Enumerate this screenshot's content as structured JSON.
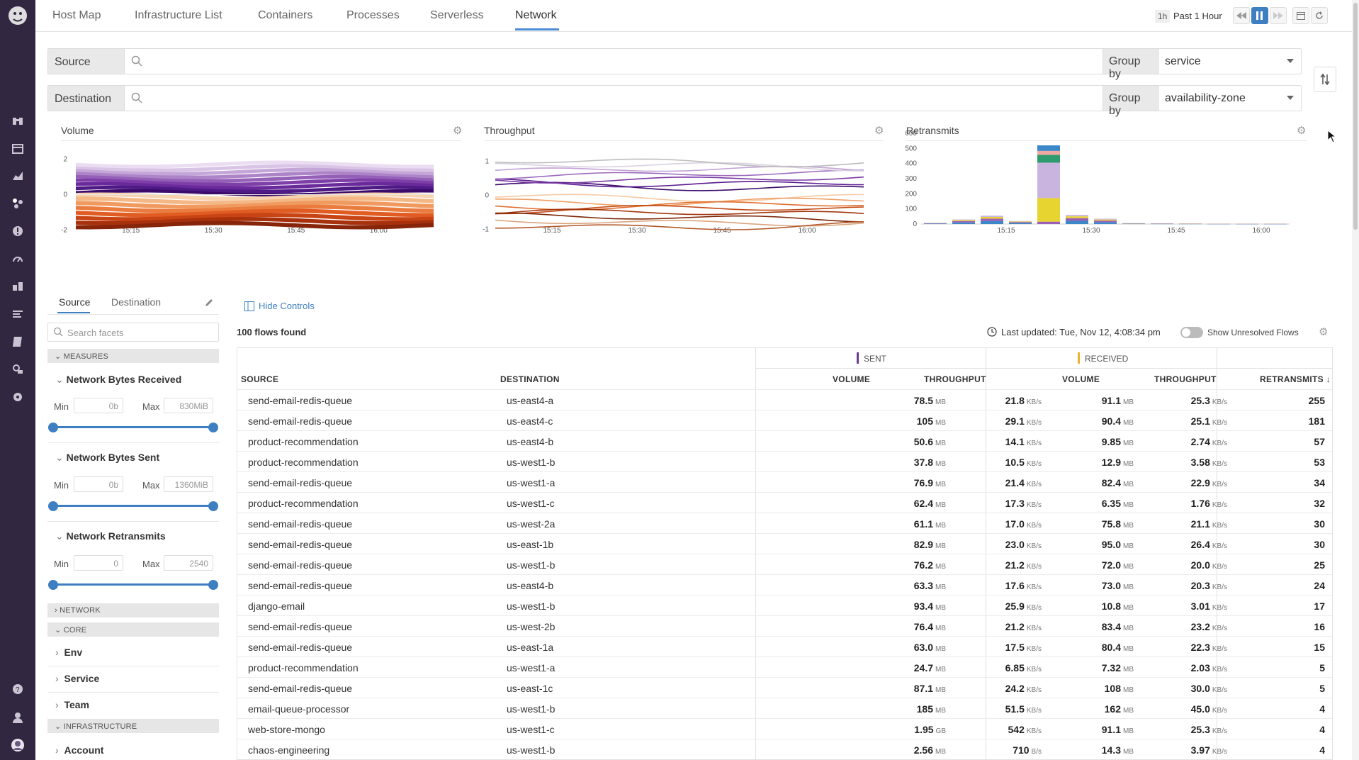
{
  "nav": {
    "tabs": [
      "Host Map",
      "Infrastructure List",
      "Containers",
      "Processes",
      "Serverless",
      "Network"
    ],
    "active": "Network"
  },
  "time": {
    "badge": "1h",
    "label": "Past 1 Hour"
  },
  "filters": {
    "source_label": "Source",
    "destination_label": "Destination",
    "group_by_label": "Group by",
    "source_group": "service",
    "destination_group": "availability-zone"
  },
  "charts": {
    "x_ticks": [
      "15:15",
      "15:30",
      "15:45",
      "16:00"
    ],
    "volume": {
      "title": "Volume",
      "y_ticks": [
        "2",
        "0",
        "-2"
      ]
    },
    "throughput": {
      "title": "Throughput",
      "y_ticks": [
        "1",
        "0",
        "-1"
      ]
    },
    "retransmits": {
      "title": "Retransmits",
      "y_ticks": [
        "600",
        "500",
        "400",
        "300",
        "200",
        "100",
        "0"
      ]
    }
  },
  "chart_data": [
    {
      "type": "area",
      "title": "Volume",
      "x_ticks": [
        "15:15",
        "15:30",
        "15:45",
        "16:00"
      ],
      "y_ticks": [
        2,
        0,
        -2
      ],
      "ylim": [
        -2.5,
        2.5
      ],
      "note_series": "stacked sent (purple, positive) and received (orange/red, negative) flows"
    },
    {
      "type": "line",
      "title": "Throughput",
      "x_ticks": [
        "15:15",
        "15:30",
        "15:45",
        "16:00"
      ],
      "y_ticks": [
        1,
        0,
        -1
      ],
      "ylim": [
        -1.4,
        1.4
      ]
    },
    {
      "type": "bar",
      "title": "Retransmits",
      "x_ticks": [
        "15:15",
        "15:30",
        "15:45",
        "16:00"
      ],
      "y_ticks": [
        0,
        100,
        200,
        300,
        400,
        500,
        600
      ],
      "ylim": [
        0,
        600
      ],
      "bars": [
        {
          "x": "15:05",
          "value": 8
        },
        {
          "x": "15:10",
          "value": 30
        },
        {
          "x": "15:15",
          "value": 55
        },
        {
          "x": "15:20",
          "value": 20
        },
        {
          "x": "15:25",
          "value": 520
        },
        {
          "x": "15:30",
          "value": 60
        },
        {
          "x": "15:35",
          "value": 35
        },
        {
          "x": "15:40",
          "value": 6
        },
        {
          "x": "15:45",
          "value": 5
        },
        {
          "x": "15:50",
          "value": 4
        },
        {
          "x": "15:55",
          "value": 3
        },
        {
          "x": "16:00",
          "value": 3
        },
        {
          "x": "16:05",
          "value": 3
        }
      ]
    }
  ],
  "facets": {
    "tabs": [
      "Source",
      "Destination"
    ],
    "search_placeholder": "Search facets",
    "hide_controls": "Hide Controls",
    "sections": {
      "measures": "MEASURES",
      "network": "NETWORK",
      "core": "CORE",
      "infrastructure": "INFRASTRUCTURE"
    },
    "measures": [
      {
        "name": "Network Bytes Received",
        "min": "0b",
        "max": "830MiB"
      },
      {
        "name": "Network Bytes Sent",
        "min": "0b",
        "max": "1360MiB"
      },
      {
        "name": "Network Retransmits",
        "min": "0",
        "max": "2540"
      }
    ],
    "min_label": "Min",
    "max_label": "Max",
    "core_items": [
      "Env",
      "Service",
      "Team"
    ],
    "infra_items": [
      "Account"
    ]
  },
  "table": {
    "count": "100 flows found",
    "last_updated": "Last updated: Tue, Nov 12, 4:08:34 pm",
    "unresolved": "Show Unresolved Flows",
    "groups": {
      "sent": "SENT",
      "received": "RECEIVED"
    },
    "columns": [
      "SOURCE",
      "DESTINATION",
      "VOLUME",
      "THROUGHPUT",
      "VOLUME",
      "THROUGHPUT",
      "RETRANSMITS ↓"
    ],
    "rows": [
      {
        "src": "send-email-redis-queue",
        "dst": "us-east4-a",
        "sv": "78.5",
        "svu": "MB",
        "st": "21.8",
        "stu": "KB/s",
        "rv": "91.1",
        "rvu": "MB",
        "rt": "25.3",
        "rtu": "KB/s",
        "re": "255"
      },
      {
        "src": "send-email-redis-queue",
        "dst": "us-east4-c",
        "sv": "105",
        "svu": "MB",
        "st": "29.1",
        "stu": "KB/s",
        "rv": "90.4",
        "rvu": "MB",
        "rt": "25.1",
        "rtu": "KB/s",
        "re": "181"
      },
      {
        "src": "product-recommendation",
        "dst": "us-east4-b",
        "sv": "50.6",
        "svu": "MB",
        "st": "14.1",
        "stu": "KB/s",
        "rv": "9.85",
        "rvu": "MB",
        "rt": "2.74",
        "rtu": "KB/s",
        "re": "57"
      },
      {
        "src": "product-recommendation",
        "dst": "us-west1-b",
        "sv": "37.8",
        "svu": "MB",
        "st": "10.5",
        "stu": "KB/s",
        "rv": "12.9",
        "rvu": "MB",
        "rt": "3.58",
        "rtu": "KB/s",
        "re": "53"
      },
      {
        "src": "send-email-redis-queue",
        "dst": "us-west1-a",
        "sv": "76.9",
        "svu": "MB",
        "st": "21.4",
        "stu": "KB/s",
        "rv": "82.4",
        "rvu": "MB",
        "rt": "22.9",
        "rtu": "KB/s",
        "re": "34"
      },
      {
        "src": "product-recommendation",
        "dst": "us-west1-c",
        "sv": "62.4",
        "svu": "MB",
        "st": "17.3",
        "stu": "KB/s",
        "rv": "6.35",
        "rvu": "MB",
        "rt": "1.76",
        "rtu": "KB/s",
        "re": "32"
      },
      {
        "src": "send-email-redis-queue",
        "dst": "us-west-2a",
        "sv": "61.1",
        "svu": "MB",
        "st": "17.0",
        "stu": "KB/s",
        "rv": "75.8",
        "rvu": "MB",
        "rt": "21.1",
        "rtu": "KB/s",
        "re": "30"
      },
      {
        "src": "send-email-redis-queue",
        "dst": "us-east-1b",
        "sv": "82.9",
        "svu": "MB",
        "st": "23.0",
        "stu": "KB/s",
        "rv": "95.0",
        "rvu": "MB",
        "rt": "26.4",
        "rtu": "KB/s",
        "re": "30"
      },
      {
        "src": "send-email-redis-queue",
        "dst": "us-west1-b",
        "sv": "76.2",
        "svu": "MB",
        "st": "21.2",
        "stu": "KB/s",
        "rv": "72.0",
        "rvu": "MB",
        "rt": "20.0",
        "rtu": "KB/s",
        "re": "25"
      },
      {
        "src": "send-email-redis-queue",
        "dst": "us-east4-b",
        "sv": "63.3",
        "svu": "MB",
        "st": "17.6",
        "stu": "KB/s",
        "rv": "73.0",
        "rvu": "MB",
        "rt": "20.3",
        "rtu": "KB/s",
        "re": "24"
      },
      {
        "src": "django-email",
        "dst": "us-west1-b",
        "sv": "93.4",
        "svu": "MB",
        "st": "25.9",
        "stu": "KB/s",
        "rv": "10.8",
        "rvu": "MB",
        "rt": "3.01",
        "rtu": "KB/s",
        "re": "17"
      },
      {
        "src": "send-email-redis-queue",
        "dst": "us-west-2b",
        "sv": "76.4",
        "svu": "MB",
        "st": "21.2",
        "stu": "KB/s",
        "rv": "83.4",
        "rvu": "MB",
        "rt": "23.2",
        "rtu": "KB/s",
        "re": "16"
      },
      {
        "src": "send-email-redis-queue",
        "dst": "us-east-1a",
        "sv": "63.0",
        "svu": "MB",
        "st": "17.5",
        "stu": "KB/s",
        "rv": "80.4",
        "rvu": "MB",
        "rt": "22.3",
        "rtu": "KB/s",
        "re": "15"
      },
      {
        "src": "product-recommendation",
        "dst": "us-west1-a",
        "sv": "24.7",
        "svu": "MB",
        "st": "6.85",
        "stu": "KB/s",
        "rv": "7.32",
        "rvu": "MB",
        "rt": "2.03",
        "rtu": "KB/s",
        "re": "5"
      },
      {
        "src": "send-email-redis-queue",
        "dst": "us-east-1c",
        "sv": "87.1",
        "svu": "MB",
        "st": "24.2",
        "stu": "KB/s",
        "rv": "108",
        "rvu": "MB",
        "rt": "30.0",
        "rtu": "KB/s",
        "re": "5"
      },
      {
        "src": "email-queue-processor",
        "dst": "us-west1-b",
        "sv": "185",
        "svu": "MB",
        "st": "51.5",
        "stu": "KB/s",
        "rv": "162",
        "rvu": "MB",
        "rt": "45.0",
        "rtu": "KB/s",
        "re": "4"
      },
      {
        "src": "web-store-mongo",
        "dst": "us-west1-c",
        "sv": "1.95",
        "svu": "GB",
        "st": "542",
        "stu": "KB/s",
        "rv": "91.1",
        "rvu": "MB",
        "rt": "25.3",
        "rtu": "KB/s",
        "re": "4"
      },
      {
        "src": "chaos-engineering",
        "dst": "us-west1-b",
        "sv": "2.56",
        "svu": "MB",
        "st": "710",
        "stu": "B/s",
        "rv": "14.3",
        "rvu": "MB",
        "rt": "3.97",
        "rtu": "KB/s",
        "re": "4"
      }
    ]
  },
  "colors": {
    "sidebar": "#322741",
    "accent": "#3e7fc1",
    "sent": "#6c3a97",
    "received": "#e8b52a"
  }
}
